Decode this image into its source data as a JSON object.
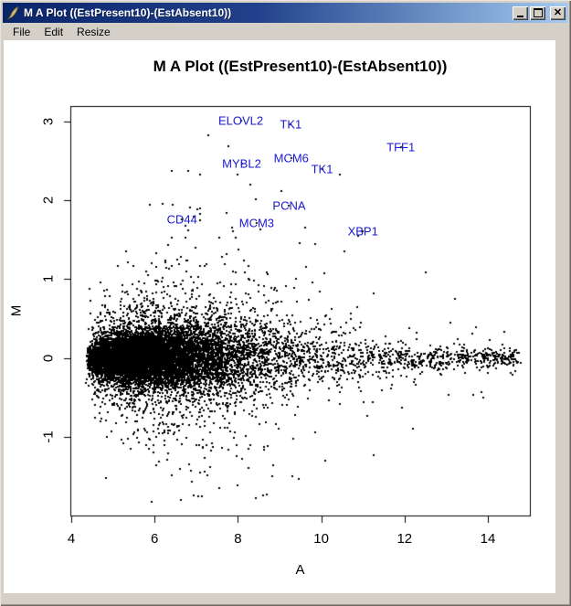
{
  "window": {
    "title": "M A Plot ((EstPresent10)-(EstAbsent10))",
    "icons": {
      "app": "feather-icon",
      "minimize": "minimize-icon",
      "maximize": "maximize-icon",
      "close": "close-icon"
    }
  },
  "menu": {
    "items": [
      "File",
      "Edit",
      "Resize"
    ]
  },
  "colors": {
    "titlebar_left": "#0a246a",
    "titlebar_right": "#a6caf0",
    "chrome": "#d4d0c8",
    "plot_background": "#ffffff",
    "point": "#000000",
    "gene_label": "#1818d2",
    "text": "#000000"
  },
  "chart_data": {
    "type": "scatter",
    "title": "M A Plot ((EstPresent10)-(EstAbsent10))",
    "xlabel": "A",
    "ylabel": "M",
    "xlim": [
      3.98,
      15.01
    ],
    "ylim": [
      -2.0,
      3.19
    ],
    "xticks": [
      4,
      6,
      8,
      10,
      12,
      14
    ],
    "yticks": [
      -1,
      0,
      1,
      2,
      3
    ],
    "grid": false,
    "legend": "none",
    "point_color": "#000000",
    "label_color": "#1818d2",
    "labeled_points": [
      {
        "gene": "ELOVL2",
        "a": 8.07,
        "m": 3.01
      },
      {
        "gene": "TK1",
        "a": 9.27,
        "m": 2.96
      },
      {
        "gene": "TFF1",
        "a": 11.91,
        "m": 2.67
      },
      {
        "gene": "MCM6",
        "a": 9.28,
        "m": 2.54
      },
      {
        "gene": "MYBL2",
        "a": 8.09,
        "m": 2.47
      },
      {
        "gene": "TK1",
        "a": 10.02,
        "m": 2.4
      },
      {
        "gene": "PCNA",
        "a": 9.23,
        "m": 1.93
      },
      {
        "gene": "CD44",
        "a": 6.66,
        "m": 1.76
      },
      {
        "gene": "MCM3",
        "a": 8.45,
        "m": 1.71
      },
      {
        "gene": "XBP1",
        "a": 11.0,
        "m": 1.61
      }
    ],
    "extra_points": [
      [
        7.29,
        2.83
      ],
      [
        7.77,
        2.69
      ],
      [
        6.41,
        2.37
      ],
      [
        8.0,
        2.33
      ],
      [
        10.45,
        2.33
      ],
      [
        9.05,
        2.12
      ],
      [
        8.3,
        2.2
      ],
      [
        6.2,
        1.95
      ],
      [
        7.1,
        1.83
      ],
      [
        7.95,
        1.52
      ],
      [
        9.85,
        1.45
      ],
      [
        10.55,
        1.35
      ],
      [
        12.5,
        1.08
      ],
      [
        6.8,
        1.62
      ],
      [
        13.2,
        0.75
      ],
      [
        8.6,
        -1.75
      ],
      [
        8.0,
        -1.62
      ],
      [
        9.3,
        -1.5
      ],
      [
        7.2,
        -1.45
      ],
      [
        10.1,
        -1.3
      ],
      [
        13.9,
        -0.5
      ],
      [
        12.2,
        -0.9
      ]
    ],
    "cloud": {
      "description": "dense MA-plot point cloud centered on M=0, left-skewed in A",
      "seed": 11,
      "n": 12500,
      "gamma_min": 4.35,
      "gamma_scale": 0.85,
      "uniform_frac": 0.1,
      "uniform_min": 5.3,
      "uniform_span": 9.45,
      "a_max": 14.85,
      "sigma_base": 0.055,
      "sigma_peak": 0.2,
      "sigma_center": 8.0,
      "sigma_div": 8.0,
      "tail_fracs": [
        0.8,
        0.16,
        0.04
      ],
      "tail_mults": [
        1.0,
        2.3,
        4.5
      ]
    }
  }
}
